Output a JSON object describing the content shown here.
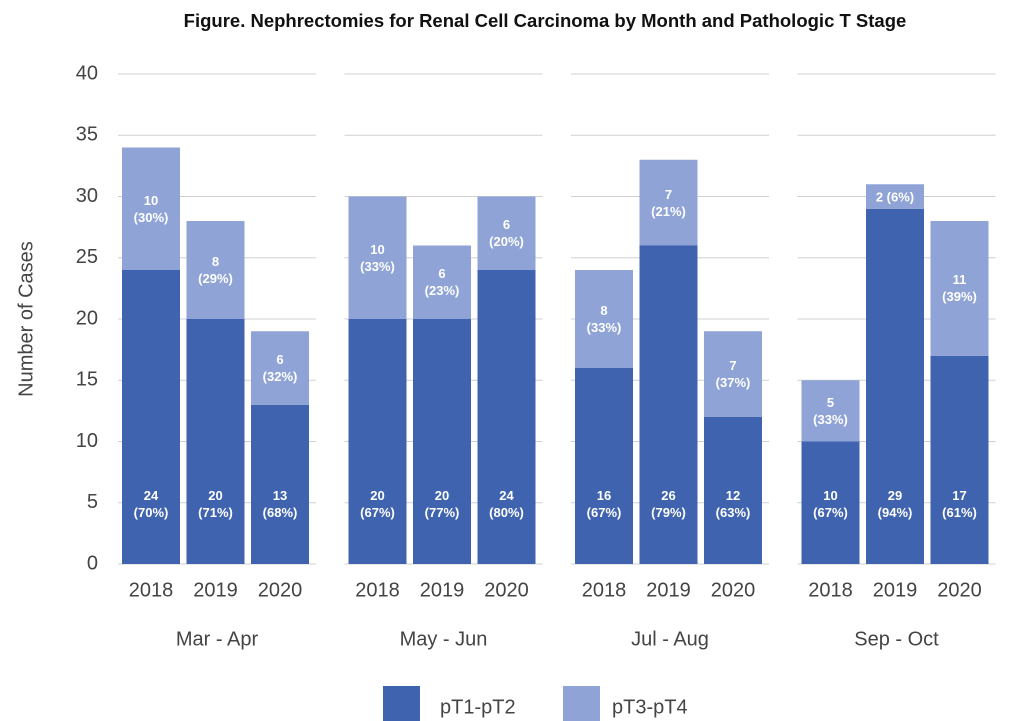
{
  "chart_data": {
    "type": "bar",
    "stacked": true,
    "title": "Figure. Nephrectomies for Renal Cell Carcinoma by Month and Pathologic T Stage",
    "y_label": "Number of Cases",
    "groups": [
      "Mar - Apr",
      "May - Jun",
      "Jul - Aug",
      "Sep - Oct"
    ],
    "categories": [
      "2018",
      "2019",
      "2020",
      "2018",
      "2019",
      "2020",
      "2018",
      "2019",
      "2020",
      "2018",
      "2019",
      "2020"
    ],
    "series": [
      {
        "name": "pT1-pT2",
        "color": "#3f63ae",
        "values": [
          24,
          20,
          13,
          20,
          20,
          24,
          16,
          26,
          12,
          10,
          29,
          17
        ],
        "value_labels": [
          "24\n(70%)",
          "20\n(71%)",
          "13\n(68%)",
          "20\n(67%)",
          "20\n(77%)",
          "24\n(80%)",
          "16\n(67%)",
          "26\n(79%)",
          "12\n(63%)",
          "10\n(67%)",
          "29\n(94%)",
          "17\n(61%)"
        ]
      },
      {
        "name": "pT3-pT4",
        "color": "#8fa3d6",
        "values": [
          10,
          8,
          6,
          10,
          6,
          6,
          8,
          7,
          7,
          5,
          2,
          11
        ],
        "value_labels": [
          "10\n(30%)",
          "8\n(29%)",
          "6\n(32%)",
          "10\n(33%)",
          "6\n(23%)",
          "6\n(20%)",
          "8\n(33%)",
          "7\n(21%)",
          "7\n(37%)",
          "5\n(33%)",
          "2 (6%)",
          "11\n(39%)"
        ]
      }
    ],
    "ylim": [
      0,
      40
    ],
    "yticks": [
      0,
      5,
      10,
      15,
      20,
      25,
      30,
      35,
      40
    ],
    "grid": true,
    "legend": "bottom"
  }
}
